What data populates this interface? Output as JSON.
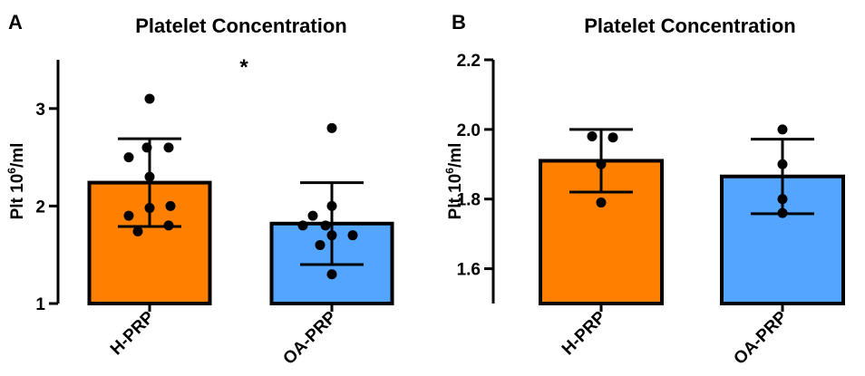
{
  "colors": {
    "h_prp": "#FF8000",
    "oa_prp": "#54A5FF",
    "ink": "#000000"
  },
  "chart_data": [
    {
      "panel_label": "A",
      "type": "bar",
      "title": "Platelet Concentration",
      "ylabel": "Plt 10",
      "ylabel_sup": "6",
      "ylabel_suffix": "/ml",
      "categories": [
        "H-PRP",
        "OA-PRP"
      ],
      "values": [
        2.24,
        1.82
      ],
      "error": [
        0.45,
        0.42
      ],
      "points": [
        [
          3.1,
          2.6,
          2.6,
          2.5,
          2.3,
          2.0,
          1.98,
          1.9,
          1.8,
          1.74
        ],
        [
          2.8,
          2.0,
          1.9,
          1.8,
          1.8,
          1.7,
          1.7,
          1.6,
          1.3
        ]
      ],
      "ylim": [
        1,
        3.5
      ],
      "yticks": [
        "1",
        "2",
        "3"
      ],
      "significance": "*",
      "grid": false,
      "legend": "none"
    },
    {
      "panel_label": "B",
      "type": "bar",
      "title": "Platelet Concentration",
      "ylabel": "Plt 10",
      "ylabel_sup": "6",
      "ylabel_suffix": "/ml",
      "categories": [
        "H-PRP",
        "OA-PRP"
      ],
      "values": [
        1.91,
        1.865
      ],
      "error": [
        0.09,
        0.107
      ],
      "points": [
        [
          1.98,
          1.977,
          1.9,
          1.79
        ],
        [
          2.0,
          1.9,
          1.8,
          1.76
        ]
      ],
      "ylim": [
        1.5,
        2.2
      ],
      "yticks": [
        "1.6",
        "1.8",
        "2.0",
        "2.2"
      ],
      "grid": false,
      "legend": "none"
    }
  ]
}
